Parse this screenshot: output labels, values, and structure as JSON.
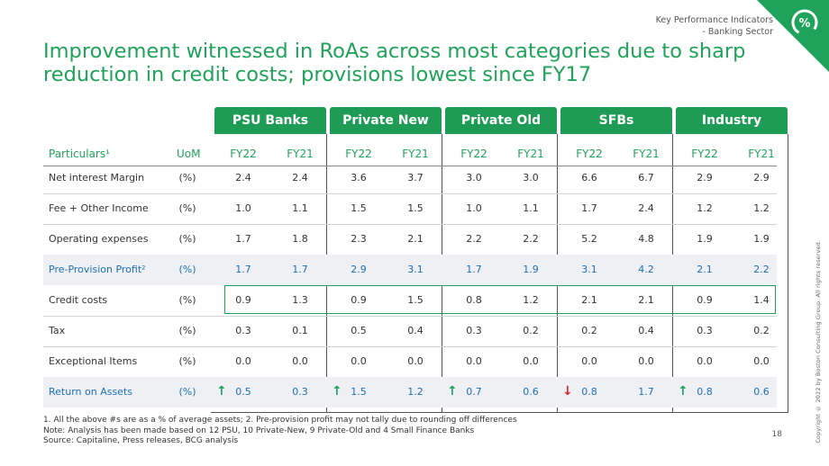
{
  "header": {
    "section": "Key Performance Indicators",
    "subsection": "- Banking Sector",
    "badge_symbol": "%"
  },
  "title": "Improvement witnessed in RoAs across most categories due to sharp reduction in credit costs; provisions lowest since FY17",
  "groups": [
    "PSU Banks",
    "Private New",
    "Private Old",
    "SFBs",
    "Industry"
  ],
  "columns": {
    "particulars": "Particulars¹",
    "uom": "UoM",
    "years": [
      "FY22",
      "FY21",
      "FY22",
      "FY21",
      "FY22",
      "FY21",
      "FY22",
      "FY21",
      "FY22",
      "FY21"
    ]
  },
  "rows": [
    {
      "label": "Net interest Margin",
      "uom": "(%)",
      "values": [
        "2.4",
        "2.4",
        "3.6",
        "3.7",
        "3.0",
        "3.0",
        "6.6",
        "6.7",
        "2.9",
        "2.9"
      ]
    },
    {
      "label": "Fee + Other Income",
      "uom": "(%)",
      "values": [
        "1.0",
        "1.1",
        "1.5",
        "1.5",
        "1.0",
        "1.1",
        "1.7",
        "2.4",
        "1.2",
        "1.2"
      ]
    },
    {
      "label": "Operating expenses",
      "uom": "(%)",
      "values": [
        "1.7",
        "1.8",
        "2.3",
        "2.1",
        "2.2",
        "2.2",
        "5.2",
        "4.8",
        "1.9",
        "1.9"
      ]
    },
    {
      "label": "Pre-Provision Profit²",
      "uom": "(%)",
      "values": [
        "1.7",
        "1.7",
        "2.9",
        "3.1",
        "1.7",
        "1.9",
        "3.1",
        "4.2",
        "2.1",
        "2.2"
      ]
    },
    {
      "label": "Credit costs",
      "uom": "(%)",
      "values": [
        "0.9",
        "1.3",
        "0.9",
        "1.5",
        "0.8",
        "1.2",
        "2.1",
        "2.1",
        "0.9",
        "1.4"
      ]
    },
    {
      "label": "Tax",
      "uom": "(%)",
      "values": [
        "0.3",
        "0.1",
        "0.5",
        "0.4",
        "0.3",
        "0.2",
        "0.2",
        "0.4",
        "0.3",
        "0.2"
      ]
    },
    {
      "label": "Exceptional Items",
      "uom": "(%)",
      "values": [
        "0.0",
        "0.0",
        "0.0",
        "0.0",
        "0.0",
        "0.0",
        "0.0",
        "0.0",
        "0.0",
        "0.0"
      ]
    },
    {
      "label": "Return on Assets",
      "uom": "(%)",
      "values": [
        "0.5",
        "0.3",
        "1.5",
        "1.2",
        "0.7",
        "0.6",
        "0.8",
        "1.7",
        "0.8",
        "0.6"
      ]
    }
  ],
  "roa_trend": [
    "up",
    "up",
    "up",
    "down",
    "up"
  ],
  "footnotes": [
    "1.   All the above #s are as a % of average assets; 2. Pre-provision profit may not tally due to rounding off differences",
    "Note: Analysis has been made based on 12 PSU, 10 Private-New, 9 Private-Old and 4 Small Finance Banks",
    "Source: Capitaline, Press releases, BCG analysis"
  ],
  "page_number": "18",
  "copyright": "Copyright © 2022 by Boston Consulting Group. All rights reserved.",
  "colors": {
    "accent": "#1fa35a",
    "header_green": "#1e9c56",
    "highlight_blue": "#1e6fb7",
    "down_red": "#d62b2b"
  }
}
